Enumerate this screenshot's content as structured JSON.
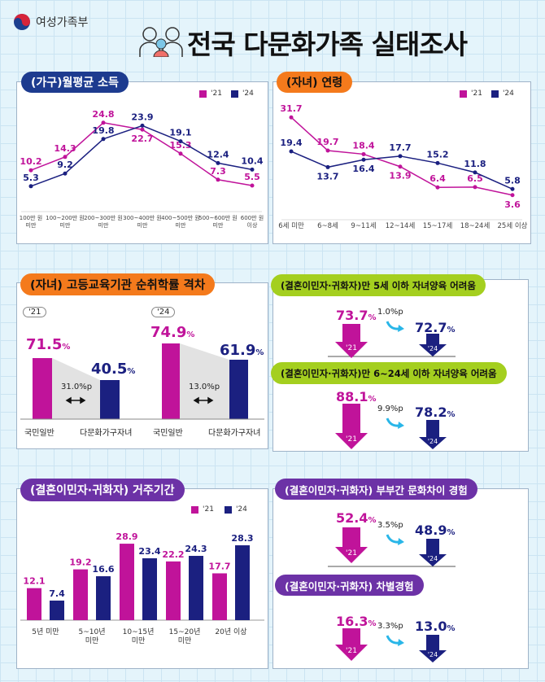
{
  "header": {
    "ministry": "여성가족부",
    "title": "전국 다문화가족 실태조사"
  },
  "colors": {
    "y2021": "#c0139a",
    "y2024": "#1b2080",
    "navy_pill": "#1d3b8f",
    "orange_pill": "#f47a1c",
    "lime_pill": "#a4cf1f",
    "purple_pill": "#6c32a6"
  },
  "legend": {
    "y2021": "'21",
    "y2024": "'24"
  },
  "chart_data": [
    {
      "type": "line",
      "title": "(가구)월평균 소득",
      "categories": [
        "100만 원 미만",
        "100~200만 원 미만",
        "200~300만 원 미만",
        "300~400만 원 미만",
        "400~500만 원 미만",
        "500~600만 원 미만",
        "600만 원 이상"
      ],
      "series": [
        {
          "name": "'21",
          "values": [
            10.2,
            14.3,
            24.8,
            22.7,
            15.3,
            7.3,
            5.5
          ]
        },
        {
          "name": "'24",
          "values": [
            5.3,
            9.2,
            19.8,
            23.9,
            19.1,
            12.4,
            10.4
          ]
        }
      ]
    },
    {
      "type": "line",
      "title": "(자녀) 연령",
      "categories": [
        "6세 미만",
        "6~8세",
        "9~11세",
        "12~14세",
        "15~17세",
        "18~24세",
        "25세 이상"
      ],
      "series": [
        {
          "name": "'21",
          "values": [
            31.7,
            19.7,
            18.4,
            13.9,
            6.4,
            6.5,
            3.6
          ]
        },
        {
          "name": "'24",
          "values": [
            19.4,
            13.7,
            16.4,
            17.7,
            15.2,
            11.8,
            5.8
          ]
        }
      ]
    },
    {
      "type": "bar",
      "title": "(자녀) 고등교육기관 순취학률 격차",
      "groups": [
        {
          "year": "'21",
          "gap": "31.0%p",
          "bars": [
            {
              "label": "국민일반",
              "value": "71.5"
            },
            {
              "label": "다문화가구자녀",
              "value": "40.5"
            }
          ]
        },
        {
          "year": "'24",
          "gap": "13.0%p",
          "bars": [
            {
              "label": "국민일반",
              "value": "74.9"
            },
            {
              "label": "다문화가구자녀",
              "value": "61.9"
            }
          ]
        }
      ],
      "unit": "%"
    },
    {
      "type": "bar",
      "title": "(결혼이민자·귀화자) 거주기간",
      "categories": [
        "5년 미만",
        "5~10년 미만",
        "10~15년 미만",
        "15~20년 미만",
        "20년 이상"
      ],
      "series": [
        {
          "name": "'21",
          "values": [
            12.1,
            19.2,
            28.9,
            22.2,
            17.7
          ]
        },
        {
          "name": "'24",
          "values": [
            7.4,
            16.6,
            23.4,
            24.3,
            28.3
          ]
        }
      ]
    }
  ],
  "comparisons": [
    {
      "title": "(결혼이민자·귀화자)만 5세 이하 자녀양육 어려움",
      "v21": "73.7",
      "v24": "72.7",
      "diff": "1.0%p"
    },
    {
      "title": "(결혼이민자·귀화자)만 6~24세 이하 자녀양육 어려움",
      "v21": "88.1",
      "v24": "78.2",
      "diff": "9.9%p"
    },
    {
      "title": "(결혼이민자·귀화자) 부부간 문화차이 경험",
      "v21": "52.4",
      "v24": "48.9",
      "diff": "3.5%p"
    },
    {
      "title": "(결혼이민자·귀화자) 차별경험",
      "v21": "16.3",
      "v24": "13.0",
      "diff": "3.3%p"
    }
  ],
  "unit": {
    "pct": "%"
  }
}
